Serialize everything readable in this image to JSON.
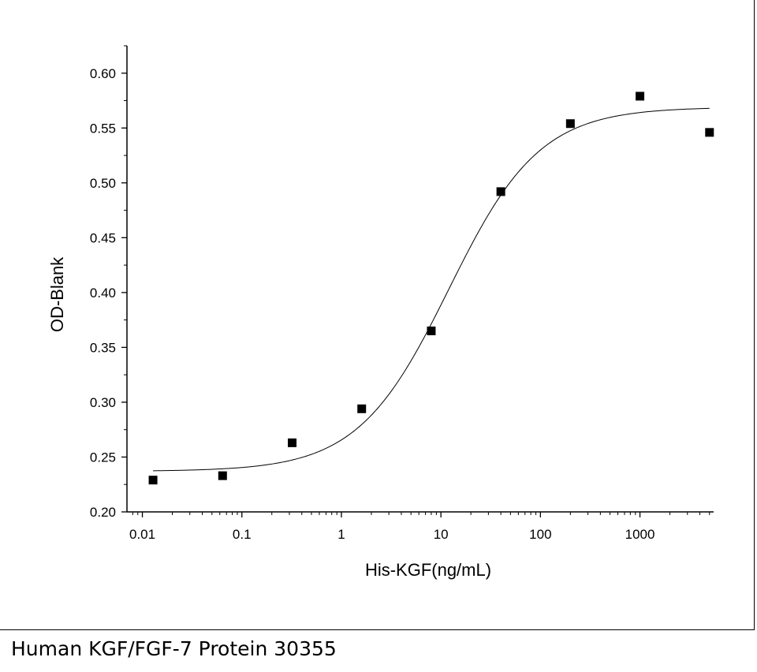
{
  "caption": "Human KGF/FGF-7 Protein 30355",
  "chart_data": {
    "type": "scatter",
    "xlabel": "His-KGF(ng/mL)",
    "ylabel": "OD-Blank",
    "xscale": "log",
    "xlim": [
      0.007,
      5500
    ],
    "ylim": [
      0.2,
      0.625
    ],
    "x_ticks": [
      0.01,
      0.1,
      1,
      10,
      100,
      1000
    ],
    "x_tick_labels": [
      "0.01",
      "0.1",
      "1",
      "10",
      "100",
      "1000"
    ],
    "y_ticks": [
      0.2,
      0.25,
      0.3,
      0.35,
      0.4,
      0.45,
      0.5,
      0.55,
      0.6
    ],
    "y_tick_labels": [
      "0.20",
      "0.25",
      "0.30",
      "0.35",
      "0.40",
      "0.45",
      "0.50",
      "0.55",
      "0.60"
    ],
    "grid": false,
    "series": [
      {
        "type": "scatter",
        "marker": "square",
        "color": "#000000",
        "x": [
          0.0128,
          0.064,
          0.32,
          1.6,
          8,
          40,
          200,
          1000,
          5000
        ],
        "y": [
          0.229,
          0.233,
          0.263,
          0.294,
          0.365,
          0.492,
          0.554,
          0.579,
          0.546
        ]
      },
      {
        "type": "line",
        "fit": "4PL",
        "color": "#000000",
        "bottom": 0.237,
        "top": 0.569,
        "ec50": 12,
        "hill": 0.95,
        "x_range": [
          0.0128,
          5000
        ]
      }
    ]
  }
}
